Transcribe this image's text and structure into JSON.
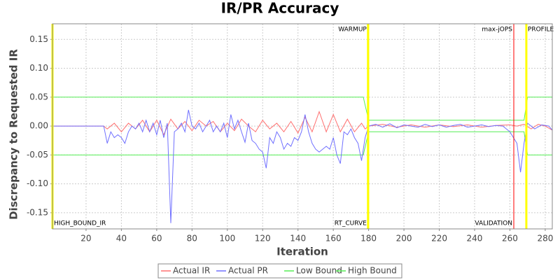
{
  "chart_data": {
    "type": "line",
    "title": "IR/PR Accuracy",
    "x_label": "Iteration",
    "y_label": "Discrepancy to Requested IR",
    "xlim": [
      1,
      284
    ],
    "ylim": [
      -0.178,
      0.177
    ],
    "xticks": [
      20,
      40,
      60,
      80,
      100,
      120,
      140,
      160,
      180,
      200,
      220,
      240,
      260,
      280
    ],
    "yticks": [
      0.15,
      {
        "value": 0.1,
        "label": "0.10"
      },
      0.05,
      {
        "value": 0,
        "label": "0.00"
      },
      -0.05,
      {
        "value": -0.1,
        "label": "-0.10"
      },
      -0.15
    ],
    "grid": true,
    "legend": "bottom",
    "markers": [
      {
        "x": 1,
        "label": "HIGH_BOUND_IR",
        "color": "#ffff00",
        "place": "bottom",
        "align": "start"
      },
      {
        "x": 179.7,
        "label": "WARMUP",
        "color": "#ffff00",
        "place": "top",
        "align": "end"
      },
      {
        "x": 179.7,
        "label": "RT_CURVE",
        "color": "#ffff00",
        "place": "bottom",
        "align": "end"
      },
      {
        "x": 262.2,
        "label": "max-jOPS",
        "color": "#ff0000",
        "place": "top",
        "align": "end"
      },
      {
        "x": 262.2,
        "label": "VALIDATION",
        "color": "#ff0000",
        "place": "bottom",
        "align": "end"
      },
      {
        "x": 269.3,
        "label": "PROFILE",
        "color": "#ffff00",
        "place": "top",
        "align": "start"
      }
    ],
    "series": [
      {
        "name": "Actual IR",
        "color": "#ff7070",
        "x": [
          1,
          30,
          32,
          36,
          40,
          44,
          48,
          52,
          56,
          60,
          64,
          68,
          72,
          76,
          80,
          84,
          88,
          92,
          96,
          100,
          104,
          108,
          112,
          116,
          120,
          124,
          128,
          132,
          136,
          140,
          144,
          148,
          152,
          156,
          160,
          164,
          168,
          172,
          176,
          178,
          180,
          188,
          196,
          204,
          212,
          220,
          228,
          236,
          244,
          252,
          260,
          264,
          268,
          272,
          276,
          280,
          284
        ],
        "values": [
          0,
          0,
          -0.005,
          0.005,
          -0.01,
          0.005,
          -0.005,
          0.01,
          -0.01,
          0.01,
          -0.015,
          0.012,
          -0.005,
          0.008,
          -0.008,
          0.01,
          0.0,
          0.008,
          -0.01,
          0.005,
          -0.008,
          0.012,
          0.0,
          -0.01,
          0.01,
          -0.005,
          0.005,
          -0.01,
          0.008,
          -0.012,
          0.015,
          -0.01,
          0.025,
          -0.01,
          0.02,
          -0.01,
          0.012,
          -0.01,
          0.005,
          -0.005,
          0.0,
          0.003,
          -0.002,
          0.002,
          -0.002,
          0.002,
          -0.001,
          0.002,
          -0.002,
          0.001,
          0.002,
          0.0,
          0.003,
          -0.005,
          0.003,
          0.0,
          -0.007
        ]
      },
      {
        "name": "Actual PR",
        "color": "#7070ff",
        "x": [
          1,
          30,
          32,
          34,
          36,
          38,
          40,
          42,
          44,
          46,
          48,
          50,
          52,
          54,
          56,
          58,
          60,
          62,
          64,
          66,
          68,
          70,
          72,
          74,
          76,
          78,
          80,
          82,
          84,
          86,
          88,
          90,
          92,
          94,
          96,
          98,
          100,
          102,
          104,
          106,
          108,
          110,
          112,
          114,
          116,
          118,
          120,
          122,
          124,
          126,
          128,
          130,
          132,
          134,
          136,
          138,
          140,
          142,
          144,
          146,
          148,
          150,
          152,
          154,
          156,
          158,
          160,
          162,
          164,
          166,
          168,
          170,
          172,
          174,
          176,
          178,
          180,
          184,
          188,
          192,
          196,
          200,
          204,
          208,
          212,
          216,
          220,
          224,
          228,
          232,
          236,
          240,
          244,
          248,
          252,
          256,
          260,
          262,
          264,
          266,
          268,
          270,
          274,
          278,
          282,
          284
        ],
        "values": [
          0,
          0,
          -0.03,
          -0.01,
          -0.02,
          -0.015,
          -0.02,
          -0.03,
          -0.01,
          0.0,
          -0.005,
          0.005,
          -0.01,
          0.01,
          -0.01,
          0.005,
          -0.015,
          0.01,
          -0.02,
          0.005,
          -0.168,
          -0.01,
          -0.005,
          0.005,
          -0.01,
          0.028,
          0.0,
          -0.005,
          0.005,
          -0.01,
          0.0,
          0.01,
          -0.01,
          0.0,
          -0.01,
          0.005,
          -0.02,
          0.02,
          -0.005,
          0.01,
          -0.01,
          -0.028,
          0.005,
          -0.025,
          -0.03,
          -0.04,
          -0.045,
          -0.073,
          -0.02,
          -0.03,
          -0.01,
          -0.02,
          -0.04,
          -0.03,
          -0.035,
          -0.02,
          -0.025,
          -0.01,
          0.02,
          -0.01,
          -0.03,
          -0.04,
          -0.045,
          -0.04,
          -0.035,
          -0.04,
          -0.02,
          -0.05,
          -0.065,
          -0.01,
          -0.015,
          -0.005,
          -0.02,
          -0.03,
          -0.06,
          -0.02,
          0.0,
          0.003,
          -0.002,
          0.004,
          -0.003,
          0.002,
          0.0,
          -0.002,
          0.003,
          -0.001,
          0.002,
          -0.002,
          0.001,
          0.003,
          -0.002,
          0.0,
          0.002,
          -0.001,
          0.001,
          0.0,
          -0.01,
          -0.02,
          -0.03,
          -0.08,
          -0.03,
          0.005,
          -0.005,
          0.002,
          0.0,
          -0.007
        ]
      },
      {
        "name": "Low Bound",
        "color": "#55ee55",
        "x": [
          1,
          177,
          180,
          268,
          270,
          284
        ],
        "values": [
          -0.05,
          -0.05,
          -0.01,
          -0.01,
          -0.05,
          -0.05
        ]
      },
      {
        "name": "High Bound",
        "color": "#55ee55",
        "x": [
          1,
          177,
          180,
          268,
          270,
          284
        ],
        "values": [
          0.05,
          0.05,
          0.01,
          0.01,
          0.05,
          0.05
        ]
      }
    ]
  }
}
